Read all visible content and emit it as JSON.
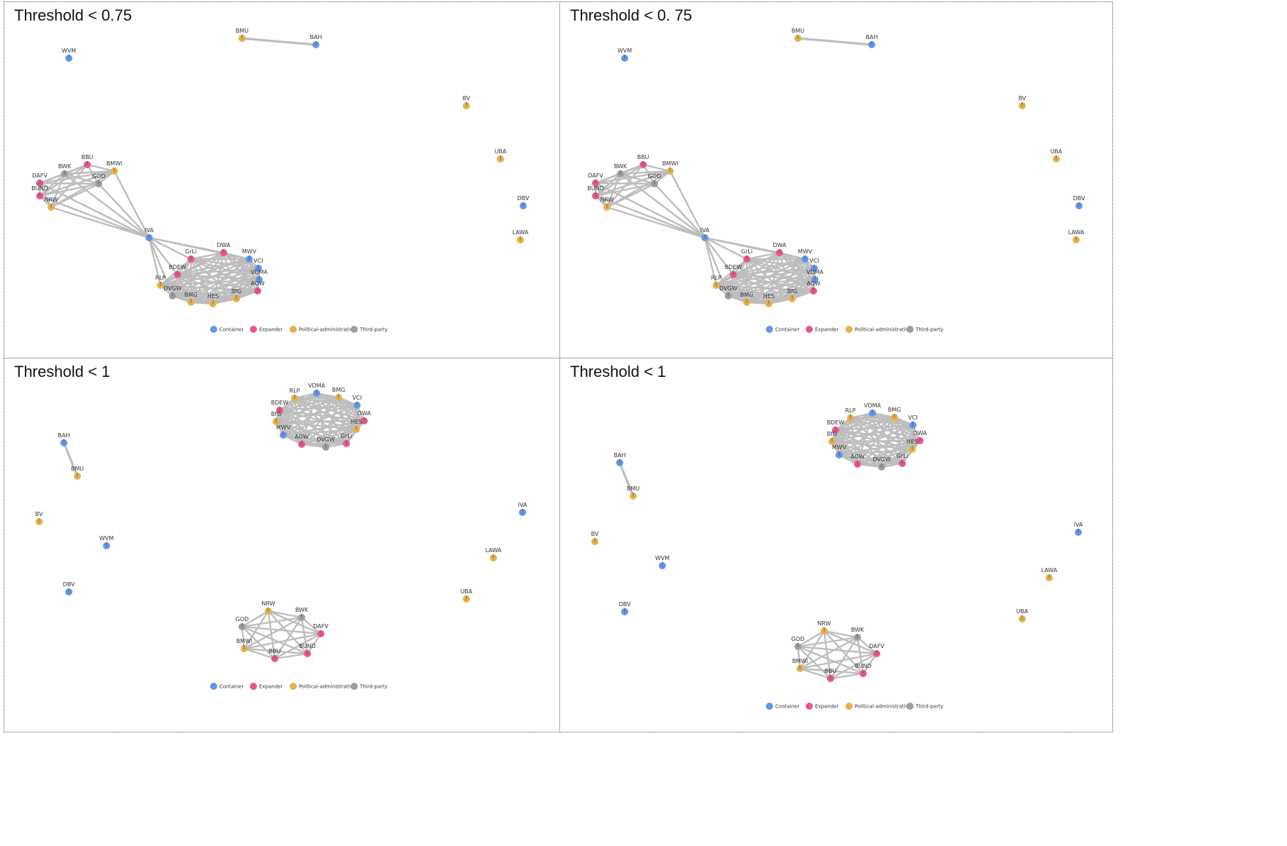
{
  "colors": {
    "Container": "#6495ED",
    "Expander": "#E8578A",
    "Political-administrative": "#E8B04B",
    "Third-party": "#9E9E9E",
    "edge": "#BDBDBD"
  },
  "legend": [
    "Container",
    "Expander",
    "Political-administrative",
    "Third-party"
  ],
  "panels": [
    {
      "title": "Threshold < 0.75",
      "layout": "a"
    },
    {
      "title": "Threshold < 0. 75",
      "layout": "a"
    },
    {
      "title": "Threshold < 1",
      "layout": "b"
    },
    {
      "title": "Threshold < 1",
      "layout": "b"
    }
  ],
  "nodes": [
    {
      "id": "WVM",
      "group": "Container"
    },
    {
      "id": "BMU",
      "group": "Political-administrative"
    },
    {
      "id": "BAH",
      "group": "Container"
    },
    {
      "id": "BV",
      "group": "Political-administrative"
    },
    {
      "id": "UBA",
      "group": "Political-administrative"
    },
    {
      "id": "DBV",
      "group": "Container"
    },
    {
      "id": "LAWA",
      "group": "Political-administrative"
    },
    {
      "id": "IVA",
      "group": "Container"
    },
    {
      "id": "BBU",
      "group": "Expander"
    },
    {
      "id": "BMWi",
      "group": "Political-administrative"
    },
    {
      "id": "BWK",
      "group": "Third-party"
    },
    {
      "id": "GOD",
      "group": "Third-party"
    },
    {
      "id": "DAFV",
      "group": "Expander"
    },
    {
      "id": "BUND",
      "group": "Expander"
    },
    {
      "id": "NRW",
      "group": "Political-administrative"
    },
    {
      "id": "GrLi",
      "group": "Expander"
    },
    {
      "id": "DWA",
      "group": "Expander"
    },
    {
      "id": "MWV",
      "group": "Container"
    },
    {
      "id": "VCI",
      "group": "Container"
    },
    {
      "id": "VDMA",
      "group": "Container"
    },
    {
      "id": "BDEW",
      "group": "Expander"
    },
    {
      "id": "RLP",
      "group": "Political-administrative"
    },
    {
      "id": "AOW",
      "group": "Expander"
    },
    {
      "id": "DVGW",
      "group": "Third-party"
    },
    {
      "id": "BMG",
      "group": "Political-administrative"
    },
    {
      "id": "HES",
      "group": "Political-administrative"
    },
    {
      "id": "BfG",
      "group": "Political-administrative"
    }
  ]
}
